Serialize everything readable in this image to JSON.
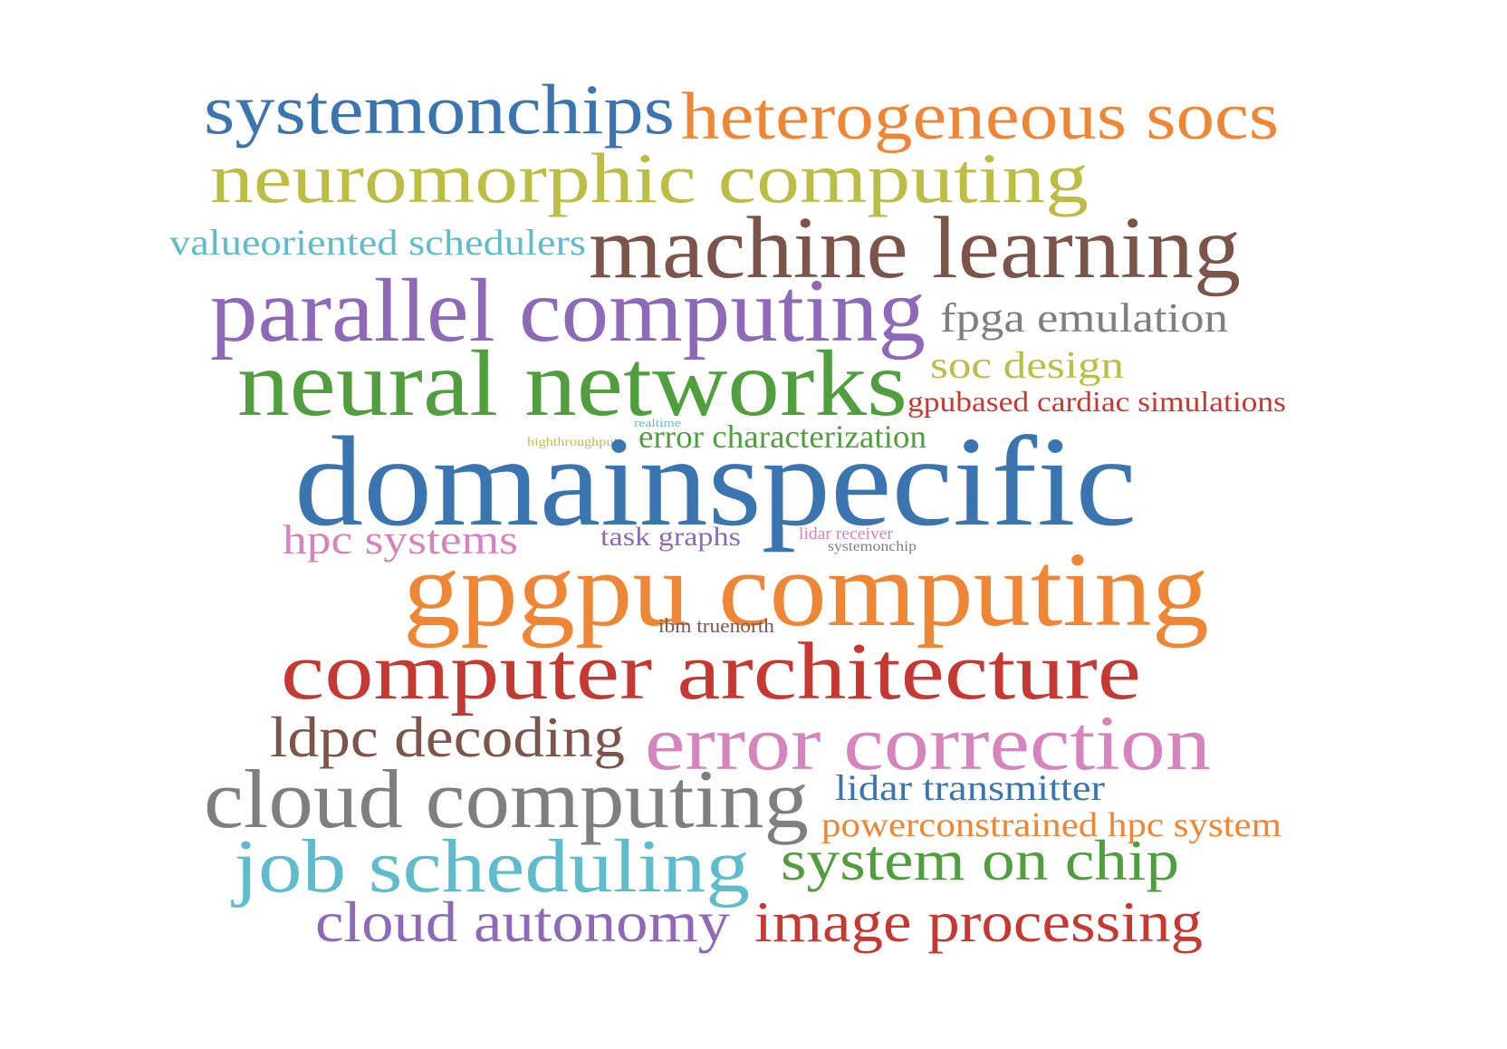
{
  "palette": {
    "blue": "#3b75af",
    "orange": "#ef8636",
    "olive": "#bcbd45",
    "cyan": "#5fbccc",
    "brown": "#7c5449",
    "purple": "#8d69b8",
    "gray": "#7f7f7f",
    "green": "#519e3e",
    "red": "#c53932",
    "pink": "#d584bd"
  },
  "words": [
    {
      "id": "systemonchips",
      "text": "systemonchips",
      "color": "#3b75af"
    },
    {
      "id": "heterogeneous-socs",
      "text": "heterogeneous socs",
      "color": "#ef8636"
    },
    {
      "id": "neuromorphic-computing",
      "text": "neuromorphic computing",
      "color": "#bcbd45"
    },
    {
      "id": "valueoriented-schedulers",
      "text": "valueoriented schedulers",
      "color": "#5fbccc"
    },
    {
      "id": "machine-learning",
      "text": "machine learning",
      "color": "#7c5449"
    },
    {
      "id": "parallel-computing",
      "text": "parallel computing",
      "color": "#8d69b8"
    },
    {
      "id": "fpga-emulation",
      "text": "fpga emulation",
      "color": "#7f7f7f"
    },
    {
      "id": "neural-networks",
      "text": "neural networks",
      "color": "#519e3e"
    },
    {
      "id": "soc-design",
      "text": "soc design",
      "color": "#bcbd45"
    },
    {
      "id": "gpubased-cardiac-simulations",
      "text": "gpubased cardiac simulations",
      "color": "#c53932"
    },
    {
      "id": "realtime",
      "text": "realtime",
      "color": "#5fbccc"
    },
    {
      "id": "highthroughput",
      "text": "highthroughput",
      "color": "#bcbd45"
    },
    {
      "id": "error-characterization",
      "text": "error characterization",
      "color": "#519e3e"
    },
    {
      "id": "domainspecific",
      "text": "domainspecific",
      "color": "#3b75af"
    },
    {
      "id": "hpc-systems",
      "text": "hpc systems",
      "color": "#d584bd"
    },
    {
      "id": "task-graphs",
      "text": "task graphs",
      "color": "#8d69b8"
    },
    {
      "id": "lidar-receiver",
      "text": "lidar receiver",
      "color": "#d584bd"
    },
    {
      "id": "systemonchip",
      "text": "systemonchip",
      "color": "#7f7f7f"
    },
    {
      "id": "gpgpu-computing",
      "text": "gpgpu computing",
      "color": "#ef8636"
    },
    {
      "id": "ibm-truenorth",
      "text": "ibm truenorth",
      "color": "#7c5449"
    },
    {
      "id": "computer-architecture",
      "text": "computer architecture",
      "color": "#c53932"
    },
    {
      "id": "ldpc-decoding",
      "text": "ldpc decoding",
      "color": "#7c5449"
    },
    {
      "id": "error-correction",
      "text": "error correction",
      "color": "#d584bd"
    },
    {
      "id": "cloud-computing",
      "text": "cloud computing",
      "color": "#7f7f7f"
    },
    {
      "id": "lidar-transmitter",
      "text": "lidar transmitter",
      "color": "#3b75af"
    },
    {
      "id": "powerconstrained-hpc-system",
      "text": "powerconstrained hpc system",
      "color": "#ef8636"
    },
    {
      "id": "job-scheduling",
      "text": "job scheduling",
      "color": "#5fbccc"
    },
    {
      "id": "system-on-chip",
      "text": "system on chip",
      "color": "#519e3e"
    },
    {
      "id": "cloud-autonomy",
      "text": "cloud autonomy",
      "color": "#8d69b8"
    },
    {
      "id": "image-processing",
      "text": "image processing",
      "color": "#c53932"
    }
  ]
}
